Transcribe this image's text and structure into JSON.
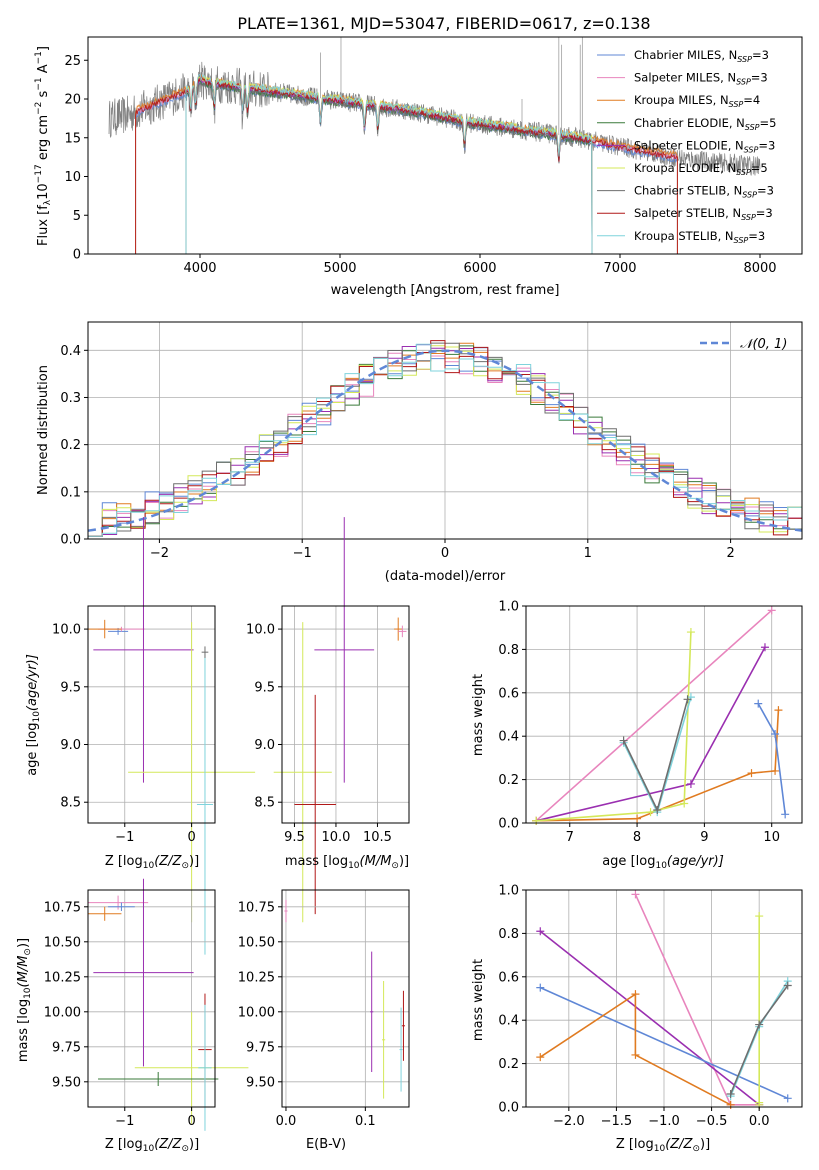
{
  "figure": {
    "title": "PLATE=1361, MJD=53047, FIBERID=0617, z=0.138",
    "colors": {
      "chabrier_miles": "#5f87d6",
      "salpeter_miles": "#e885bd",
      "kroupa_miles": "#e07b21",
      "chabrier_elodie": "#3a7a3a",
      "salpeter_elodie": "#9a2fb0",
      "kroupa_elodie": "#d4e85a",
      "chabrier_stelib": "#6e6e6e",
      "salpeter_stelib": "#b01818",
      "kroupa_stelib": "#7fd3dc",
      "data": "#808080",
      "grid": "#b0b0b0"
    }
  },
  "spectrum_panel": {
    "xlabel": "wavelength [Angstrom, rest frame]",
    "ylabel": "Flux [f$_\\lambda$10$^{-17}$ erg cm$^{-2}$ s$^{-1}$ A$^{-1}$]",
    "ylabel_main": "Flux [f",
    "ylabel_sub": "λ",
    "ylabel_rest1": "10",
    "ylabel_sup1": "−17",
    "ylabel_rest2": " erg cm",
    "ylabel_sup2": "−2",
    "ylabel_rest3": " s",
    "ylabel_sup3": "−1",
    "ylabel_rest4": " A",
    "ylabel_sup4": "−1",
    "ylabel_end": "]",
    "xlim": [
      3200,
      8300
    ],
    "ylim": [
      0,
      28
    ],
    "xticks": [
      "4000",
      "5000",
      "6000",
      "7000",
      "8000"
    ],
    "yticks": [
      "0",
      "5",
      "10",
      "15",
      "20",
      "25"
    ],
    "legend": [
      {
        "base": "Chabrier MILES, N",
        "sub": "SSP",
        "tail": "=3",
        "color": "#5f87d6"
      },
      {
        "base": "Salpeter MILES, N",
        "sub": "SSP",
        "tail": "=3",
        "color": "#e885bd"
      },
      {
        "base": "Kroupa MILES, N",
        "sub": "SSP",
        "tail": "=4",
        "color": "#e07b21"
      },
      {
        "base": "Chabrier ELODIE, N",
        "sub": "SSP",
        "tail": "=5",
        "color": "#3a7a3a"
      },
      {
        "base": "Salpeter ELODIE, N",
        "sub": "SSP",
        "tail": "=3",
        "color": "#9a2fb0"
      },
      {
        "base": "Kroupa ELODIE, N",
        "sub": "SSP",
        "tail": "=5",
        "color": "#d4e85a"
      },
      {
        "base": "Chabrier STELIB, N",
        "sub": "SSP",
        "tail": "=3",
        "color": "#6e6e6e"
      },
      {
        "base": "Salpeter STELIB, N",
        "sub": "SSP",
        "tail": "=3",
        "color": "#b01818"
      },
      {
        "base": "Kroupa STELIB, N",
        "sub": "SSP",
        "tail": "=3",
        "color": "#7fd3dc"
      }
    ]
  },
  "residual_panel": {
    "xlabel": "(data-model)/error",
    "ylabel": "Normed distribution",
    "xlim": [
      -2.5,
      2.5
    ],
    "ylim": [
      0,
      0.46
    ],
    "xticks": [
      "−2",
      "−1",
      "0",
      "1",
      "2"
    ],
    "yticks": [
      "0.0",
      "0.1",
      "0.2",
      "0.3",
      "0.4"
    ],
    "legend_label": "𝒩(0, 1)"
  },
  "age_z_panel": {
    "xlabel": "Z [log",
    "xlabel_sub": "10",
    "xlabel_tail": "(Z/Z",
    "xlabel_sun": "⊙",
    "xlabel_end": ")]",
    "ylabel": "age  [log",
    "ylabel_sub": "10",
    "ylabel_tail": "(age/yr)]",
    "xticks": [
      "−1",
      "0"
    ],
    "yticks": [
      "8.5",
      "9.0",
      "9.5",
      "10.0"
    ]
  },
  "age_mass_panel": {
    "xlabel": "mass [log",
    "xlabel_sub": "10",
    "xlabel_tail": "(M/M",
    "xlabel_sun": "⊙",
    "xlabel_end": ")]",
    "xticks": [
      "9.5",
      "10.0",
      "10.5"
    ],
    "yticks": [
      "8.5",
      "9.0",
      "9.5",
      "10.0"
    ]
  },
  "weight_age_panel": {
    "xlabel": "age  [log",
    "xlabel_sub": "10",
    "xlabel_tail": "(age/yr)]",
    "ylabel": "mass weight",
    "xticks": [
      "7",
      "8",
      "9",
      "10"
    ],
    "yticks": [
      "0.0",
      "0.2",
      "0.4",
      "0.6",
      "0.8",
      "1.0"
    ]
  },
  "mass_z_panel": {
    "xlabel": "Z [log",
    "xlabel_sub": "10",
    "xlabel_tail": "(Z/Z",
    "xlabel_sun": "⊙",
    "xlabel_end": ")]",
    "ylabel": "mass [log",
    "ylabel_sub": "10",
    "ylabel_tail": "(M/M",
    "ylabel_sun": "⊙",
    "ylabel_end": ")]",
    "xticks": [
      "−1",
      "0"
    ],
    "yticks": [
      "9.50",
      "9.75",
      "10.00",
      "10.25",
      "10.50",
      "10.75"
    ]
  },
  "mass_ebv_panel": {
    "xlabel": "E(B-V)",
    "xticks": [
      "0.0",
      "0.1"
    ],
    "yticks": [
      "9.50",
      "9.75",
      "10.00",
      "10.25",
      "10.50",
      "10.75"
    ]
  },
  "weight_z_panel": {
    "xlabel": "Z [log",
    "xlabel_sub": "10",
    "xlabel_tail": "(Z/Z",
    "xlabel_sun": "⊙",
    "xlabel_end": ")]",
    "ylabel": "mass weight",
    "xticks": [
      "−2.0",
      "−1.5",
      "−1.0",
      "−0.5",
      "0.0"
    ],
    "yticks": [
      "0.0",
      "0.2",
      "0.4",
      "0.6",
      "0.8",
      "1.0"
    ]
  },
  "chart_data": [
    {
      "type": "line",
      "panel": "spectrum",
      "xlim": [
        3200,
        8300
      ],
      "ylim": [
        0,
        28
      ],
      "continuum": {
        "x": [
          3350,
          3500,
          3700,
          3900,
          4000,
          4100,
          4300,
          4500,
          4700,
          4900,
          5100,
          5300,
          5500,
          5700,
          5900,
          6100,
          6300,
          6500,
          6700,
          6900,
          7100,
          7300,
          7500,
          7700,
          7900,
          8000
        ],
        "y": [
          17.5,
          18.0,
          19.5,
          21.0,
          22.5,
          22.0,
          21.5,
          21.0,
          20.5,
          20.0,
          19.5,
          19.0,
          18.5,
          17.8,
          17.0,
          16.5,
          16.0,
          15.5,
          15.0,
          14.2,
          13.5,
          12.8,
          12.2,
          11.8,
          11.5,
          11.3
        ]
      },
      "model_edges": {
        "chabrier_miles": [
          3540,
          7410
        ],
        "salpeter_miles": [
          3540,
          7410
        ],
        "kroupa_miles": [
          3540,
          7410
        ],
        "chabrier_elodie": [
          3900,
          6800
        ],
        "salpeter_elodie": [
          3900,
          6800
        ],
        "kroupa_elodie": [
          3900,
          6800
        ],
        "chabrier_stelib": [
          3900,
          6800
        ],
        "salpeter_stelib": [
          3540,
          7410
        ],
        "kroupa_stelib": [
          3900,
          6800
        ]
      }
    },
    {
      "type": "line",
      "panel": "residual_histogram",
      "xlim": [
        -2.5,
        2.5
      ],
      "ylim": [
        0,
        0.46
      ],
      "gaussian": {
        "mean": 0,
        "sigma": 1,
        "style": "dashed"
      }
    },
    {
      "type": "scatter",
      "panel": "age_vs_Z",
      "xlim": [
        -1.55,
        0.35
      ],
      "ylim": [
        8.32,
        10.2
      ],
      "points": [
        {
          "series": "chabrier_miles",
          "x": -1.1,
          "y": 9.98,
          "xerr": 0.15,
          "yerr": 0.03
        },
        {
          "series": "salpeter_miles",
          "x": -1.05,
          "y": 10.0,
          "xerr": 0.35,
          "yerr": 0.02
        },
        {
          "series": "kroupa_miles",
          "x": -1.3,
          "y": 10.0,
          "xerr": 0.25,
          "yerr": 0.08
        },
        {
          "series": "salpeter_elodie",
          "x": -0.72,
          "y": 9.82,
          "xerr": 0.75,
          "yerr": 1.15
        },
        {
          "series": "kroupa_elodie",
          "x": 0.0,
          "y": 8.76,
          "xerr": 0.95,
          "yerr": 1.3
        },
        {
          "series": "kroupa_stelib",
          "x": 0.2,
          "y": 8.48,
          "xerr": 0.12,
          "yerr": 1.3
        },
        {
          "series": "chabrier_stelib",
          "x": 0.2,
          "y": 9.8,
          "xerr": 0.05,
          "yerr": 0.05
        }
      ]
    },
    {
      "type": "scatter",
      "panel": "age_vs_mass",
      "xlim": [
        9.35,
        10.88
      ],
      "ylim": [
        8.32,
        10.2
      ],
      "points": [
        {
          "series": "salpeter_elodie",
          "x": 10.1,
          "y": 9.82,
          "xerr": 0.36,
          "yerr": 1.15
        },
        {
          "series": "kroupa_elodie",
          "x": 9.6,
          "y": 8.76,
          "xerr": 0.35,
          "yerr": 1.3
        },
        {
          "series": "salpeter_stelib",
          "x": 9.75,
          "y": 8.48,
          "xerr": 0.25,
          "yerr": 0.95
        },
        {
          "series": "kroupa_miles",
          "x": 10.75,
          "y": 10.0,
          "xerr": 0.05,
          "yerr": 0.1
        },
        {
          "series": "salpeter_miles",
          "x": 10.8,
          "y": 9.98,
          "xerr": 0.05,
          "yerr": 0.05
        }
      ]
    },
    {
      "type": "line",
      "panel": "mass_weight_vs_age",
      "xlim": [
        6.35,
        10.45
      ],
      "ylim": [
        0,
        1
      ],
      "series": [
        {
          "name": "salpeter_miles",
          "x": [
            6.5,
            10.0
          ],
          "y": [
            0.01,
            0.98
          ]
        },
        {
          "name": "salpeter_elodie",
          "x": [
            6.5,
            8.8,
            9.9
          ],
          "y": [
            0.01,
            0.18,
            0.81
          ]
        },
        {
          "name": "kroupa_miles",
          "x": [
            6.5,
            8.0,
            9.7,
            10.05,
            10.1
          ],
          "y": [
            0.01,
            0.02,
            0.23,
            0.24,
            0.52
          ]
        },
        {
          "name": "chabrier_miles",
          "x": [
            9.8,
            10.05,
            10.2
          ],
          "y": [
            0.55,
            0.41,
            0.04
          ]
        },
        {
          "name": "kroupa_elodie",
          "x": [
            6.5,
            8.2,
            8.7,
            8.8
          ],
          "y": [
            0.01,
            0.05,
            0.09,
            0.88
          ]
        },
        {
          "name": "kroupa_stelib",
          "x": [
            7.8,
            8.3,
            8.8
          ],
          "y": [
            0.37,
            0.05,
            0.58
          ]
        },
        {
          "name": "chabrier_stelib",
          "x": [
            7.8,
            8.3,
            8.75
          ],
          "y": [
            0.38,
            0.06,
            0.57
          ]
        }
      ]
    },
    {
      "type": "scatter",
      "panel": "mass_vs_Z",
      "xlim": [
        -1.55,
        0.35
      ],
      "ylim": [
        9.32,
        10.87
      ],
      "points": [
        {
          "series": "salpeter_miles",
          "x": -1.1,
          "y": 10.78,
          "xerr": 0.45,
          "yerr": 0.05
        },
        {
          "series": "chabrier_miles",
          "x": -1.05,
          "y": 10.75,
          "xerr": 0.2,
          "yerr": 0.03
        },
        {
          "series": "kroupa_miles",
          "x": -1.3,
          "y": 10.7,
          "xerr": 0.25,
          "yerr": 0.05
        },
        {
          "series": "salpeter_elodie",
          "x": -0.72,
          "y": 10.28,
          "xerr": 0.75,
          "yerr": 0.67
        },
        {
          "series": "kroupa_elodie",
          "x": 0.0,
          "y": 9.6,
          "xerr": 0.85,
          "yerr": 0.4
        },
        {
          "series": "chabrier_elodie",
          "x": -0.5,
          "y": 9.52,
          "xerr": 0.9,
          "yerr": 0.05
        },
        {
          "series": "salpeter_stelib",
          "x": 0.2,
          "y": 9.73,
          "xerr": 0.1,
          "yerr": 0.4
        },
        {
          "series": "kroupa_stelib",
          "x": 0.2,
          "y": 9.6,
          "xerr": 0.1,
          "yerr": 0.45
        }
      ]
    },
    {
      "type": "scatter",
      "panel": "mass_vs_EBV",
      "xlim": [
        -0.005,
        0.155
      ],
      "ylim": [
        9.32,
        10.87
      ],
      "points": [
        {
          "series": "salpeter_miles",
          "x": 0.0,
          "y": 10.72,
          "xerr": 0.002,
          "yerr": 0.08
        },
        {
          "series": "salpeter_elodie",
          "x": 0.108,
          "y": 10.0,
          "xerr": 0.002,
          "yerr": 0.43
        },
        {
          "series": "kroupa_elodie",
          "x": 0.123,
          "y": 9.8,
          "xerr": 0.002,
          "yerr": 0.42
        },
        {
          "series": "kroupa_stelib",
          "x": 0.145,
          "y": 9.73,
          "xerr": 0.002,
          "yerr": 0.3
        },
        {
          "series": "salpeter_stelib",
          "x": 0.148,
          "y": 9.9,
          "xerr": 0.002,
          "yerr": 0.25
        }
      ]
    },
    {
      "type": "line",
      "panel": "mass_weight_vs_Z",
      "xlim": [
        -2.45,
        0.45
      ],
      "ylim": [
        0,
        1
      ],
      "series": [
        {
          "name": "salpeter_miles",
          "x": [
            -1.3,
            -0.3,
            0.0
          ],
          "y": [
            0.98,
            0.01,
            0.01
          ]
        },
        {
          "name": "salpeter_elodie",
          "x": [
            -2.3,
            0.0
          ],
          "y": [
            0.81,
            0.01
          ]
        },
        {
          "name": "chabrier_miles",
          "x": [
            -2.3,
            0.3
          ],
          "y": [
            0.55,
            0.04
          ]
        },
        {
          "name": "kroupa_miles",
          "x": [
            -2.3,
            -1.3,
            -1.3,
            -0.3
          ],
          "y": [
            0.23,
            0.52,
            0.24,
            0.01
          ]
        },
        {
          "name": "kroupa_elodie",
          "x": [
            0.0,
            0.0,
            0.0
          ],
          "y": [
            0.01,
            0.88,
            0.02
          ]
        },
        {
          "name": "kroupa_stelib",
          "x": [
            -0.3,
            0.0,
            0.3
          ],
          "y": [
            0.05,
            0.37,
            0.58
          ]
        },
        {
          "name": "chabrier_stelib",
          "x": [
            -0.3,
            0.0,
            0.3
          ],
          "y": [
            0.06,
            0.38,
            0.56
          ]
        }
      ]
    }
  ]
}
